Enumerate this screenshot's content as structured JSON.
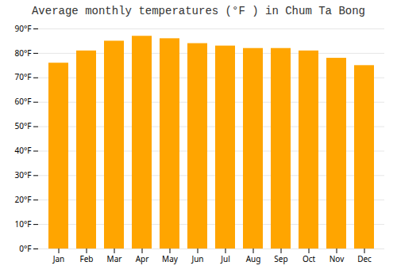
{
  "chart_data": {
    "type": "bar",
    "title": "Average monthly temperatures (°F ) in Chum Ta Bong",
    "categories": [
      "Jan",
      "Feb",
      "Mar",
      "Apr",
      "May",
      "Jun",
      "Jul",
      "Aug",
      "Sep",
      "Oct",
      "Nov",
      "Dec"
    ],
    "values": [
      76,
      81,
      85,
      87,
      86,
      84,
      83,
      82,
      82,
      81,
      78,
      75
    ],
    "color": "#FFA500",
    "ylim": [
      0,
      90
    ],
    "yticks": [
      {
        "value": 0,
        "label": "0°F"
      },
      {
        "value": 10,
        "label": "10°F"
      },
      {
        "value": 20,
        "label": "20°F"
      },
      {
        "value": 30,
        "label": "30°F"
      },
      {
        "value": 40,
        "label": "40°F"
      },
      {
        "value": 50,
        "label": "50°F"
      },
      {
        "value": 60,
        "label": "60°F"
      },
      {
        "value": 70,
        "label": "70°F"
      },
      {
        "value": 80,
        "label": "80°F"
      },
      {
        "value": 90,
        "label": "90°F"
      }
    ],
    "grid": true
  }
}
